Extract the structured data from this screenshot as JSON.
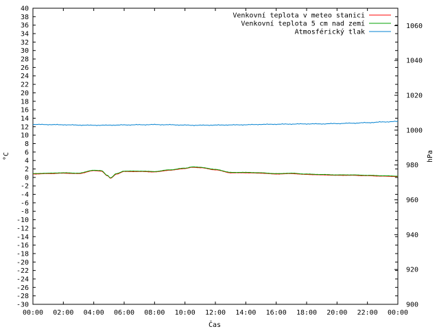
{
  "chart_data": {
    "type": "line",
    "xlabel": "Čas",
    "ylabel": "°C",
    "y2label": "hPa",
    "x_ticks": [
      "00:00",
      "02:00",
      "04:00",
      "06:00",
      "08:00",
      "10:00",
      "12:00",
      "14:00",
      "16:00",
      "18:00",
      "20:00",
      "22:00",
      "00:00"
    ],
    "x_range_hours": [
      0,
      24
    ],
    "ylim": [
      -30,
      40
    ],
    "y_tick_step": 2,
    "y2lim": [
      900,
      1070
    ],
    "y2_ticks": [
      900,
      920,
      940,
      960,
      980,
      1000,
      1020,
      1040,
      1060
    ],
    "grid": false,
    "legend_position": "top-right",
    "x_hours": [
      0,
      1,
      2,
      3,
      4,
      4.5,
      4.9,
      5.1,
      5.5,
      6,
      7,
      8,
      9,
      10,
      10.5,
      11,
      12,
      13,
      14,
      15,
      16,
      17,
      18,
      19,
      20,
      21,
      22,
      23,
      24
    ],
    "series": [
      {
        "name": "Venkovní teplota v meteo stanici",
        "color": "#ff0000",
        "axis": "left",
        "values": [
          0.8,
          0.9,
          1.0,
          0.9,
          1.6,
          1.5,
          0.4,
          -0.2,
          0.8,
          1.4,
          1.4,
          1.3,
          1.7,
          2.1,
          2.4,
          2.3,
          1.8,
          1.1,
          1.1,
          1.0,
          0.8,
          0.9,
          0.7,
          0.6,
          0.5,
          0.5,
          0.4,
          0.3,
          0.2
        ]
      },
      {
        "name": "Venkovní teplota 5 cm nad zemí",
        "color": "#00a000",
        "axis": "left",
        "values": [
          0.9,
          1.0,
          1.1,
          1.0,
          1.7,
          1.6,
          0.5,
          -0.1,
          0.9,
          1.5,
          1.5,
          1.4,
          1.8,
          2.2,
          2.5,
          2.4,
          1.9,
          1.2,
          1.2,
          1.1,
          0.9,
          1.0,
          0.8,
          0.7,
          0.6,
          0.6,
          0.5,
          0.4,
          0.3
        ]
      },
      {
        "name": "Atmosférický tlak",
        "color": "#0080d0",
        "axis": "right",
        "values": [
          1003.3,
          1003.2,
          1003.1,
          1002.9,
          1002.8,
          1002.8,
          1002.8,
          1002.9,
          1002.9,
          1003.0,
          1003.1,
          1003.2,
          1003.1,
          1002.9,
          1002.8,
          1002.8,
          1002.9,
          1003.0,
          1003.1,
          1003.3,
          1003.4,
          1003.5,
          1003.6,
          1003.6,
          1003.8,
          1004.0,
          1004.3,
          1004.7,
          1005.0
        ]
      }
    ]
  }
}
